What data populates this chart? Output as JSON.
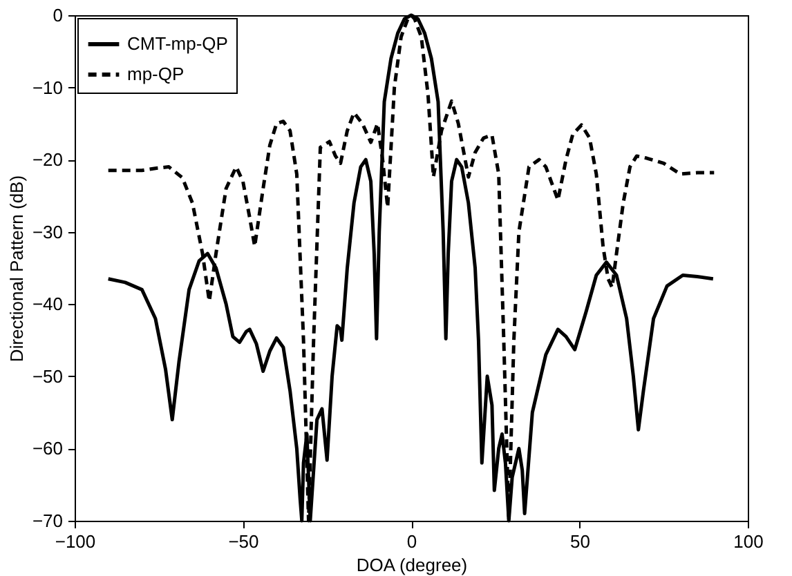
{
  "chart_data": {
    "type": "line",
    "xlabel": "DOA (degree)",
    "ylabel": "Directional Pattern (dB)",
    "xlim": [
      -100,
      100
    ],
    "ylim": [
      -70,
      0
    ],
    "xticks": [
      -100,
      -50,
      0,
      50,
      100
    ],
    "yticks": [
      -70,
      -60,
      -50,
      -40,
      -30,
      -20,
      -10,
      0
    ],
    "grid": false,
    "legend": "top left",
    "marker": "none",
    "series": [
      {
        "name": "CMT-mp-QP",
        "color": "#000000",
        "line_style": "solid",
        "x": [
          -90,
          -85,
          -80,
          -76,
          -73,
          -71,
          -69,
          -66,
          -63,
          -60.5,
          -58,
          -55,
          -53,
          -51,
          -49,
          -48,
          -46,
          -44,
          -42,
          -40,
          -38,
          -36,
          -34,
          -33,
          -32.5,
          -32,
          -31,
          -30,
          -28,
          -26.5,
          -25,
          -23.5,
          -22,
          -21,
          -20.6,
          -19,
          -17,
          -15,
          -13.5,
          -12,
          -11,
          -10.3,
          -9.5,
          -8,
          -6,
          -4,
          -2,
          0,
          2,
          4,
          6,
          8,
          9.5,
          10.3,
          11,
          12,
          13.5,
          15,
          17,
          19,
          20,
          21,
          22.6,
          24,
          24.7,
          26,
          27,
          28,
          29,
          30,
          32,
          33,
          33.7,
          36,
          40,
          43.6,
          46,
          48.6,
          52,
          55,
          58,
          61,
          64,
          66,
          67.5,
          69,
          72,
          76,
          80.7,
          85,
          89.7
        ],
        "values": [
          -36.5,
          -37,
          -38,
          -42,
          -49,
          -56,
          -48,
          -38,
          -34,
          -33,
          -35,
          -40,
          -44.5,
          -45.3,
          -43.8,
          -43.5,
          -45.5,
          -49.3,
          -46.5,
          -44.7,
          -46,
          -52,
          -60,
          -67,
          -70,
          -62,
          -58,
          -70,
          -56,
          -54.5,
          -61.6,
          -50,
          -43,
          -43.5,
          -45,
          -35,
          -26,
          -21,
          -20,
          -23,
          -33,
          -44.8,
          -30,
          -12,
          -6,
          -2.5,
          -0.5,
          0,
          -0.5,
          -2.5,
          -6,
          -12,
          -30,
          -44.8,
          -33,
          -23,
          -20,
          -21,
          -26,
          -35,
          -45,
          -62,
          -50,
          -54,
          -65.8,
          -60,
          -58,
          -62,
          -70,
          -64,
          -60,
          -63,
          -69,
          -55,
          -47,
          -43.5,
          -44.5,
          -46.3,
          -41,
          -36,
          -34.2,
          -36,
          -42,
          -50,
          -57.4,
          -52,
          -42,
          -37.5,
          -36,
          -36.2,
          -36.5
        ]
      },
      {
        "name": "mp-QP",
        "color": "#000000",
        "line_style": "dashed",
        "x": [
          -90,
          -85,
          -80,
          -76,
          -72,
          -68,
          -65,
          -62,
          -60,
          -58,
          -55,
          -52,
          -50,
          -48,
          -46.5,
          -44,
          -42,
          -40,
          -38,
          -36,
          -34,
          -32,
          -30.5,
          -29,
          -27,
          -24.3,
          -22.5,
          -21,
          -19,
          -17,
          -14.5,
          -12,
          -10,
          -8.5,
          -7,
          -5,
          -3,
          -1,
          0,
          1,
          3,
          5,
          6.6,
          9,
          12,
          14,
          17,
          19,
          21.5,
          24,
          26,
          27.5,
          29,
          30.5,
          32,
          35,
          38,
          40,
          43.6,
          46,
          48,
          50.6,
          53,
          55,
          57,
          58.5,
          59.7,
          61,
          63,
          65,
          67,
          70,
          75,
          80,
          85,
          90
        ],
        "values": [
          -21.5,
          -21.5,
          -21.5,
          -21.2,
          -21,
          -22.5,
          -26,
          -33,
          -39.6,
          -33,
          -24,
          -21,
          -23,
          -28,
          -32,
          -24,
          -18,
          -15,
          -14.7,
          -16,
          -22,
          -45,
          -70,
          -45,
          -18.3,
          -17.5,
          -19.5,
          -20.5,
          -16,
          -13.5,
          -15,
          -17.6,
          -15,
          -20,
          -26.6,
          -10,
          -3,
          -0.5,
          0,
          -0.5,
          -3,
          -11,
          -22.4,
          -16,
          -11.9,
          -15,
          -22.4,
          -19,
          -17,
          -16.6,
          -22,
          -45,
          -70,
          -45,
          -30,
          -21,
          -20,
          -21,
          -25.6,
          -20,
          -16.5,
          -15.2,
          -17,
          -22,
          -32,
          -36.5,
          -37.7,
          -33,
          -26,
          -21,
          -19.5,
          -19.8,
          -20.5,
          -22,
          -21.8,
          -21.8
        ]
      }
    ]
  }
}
